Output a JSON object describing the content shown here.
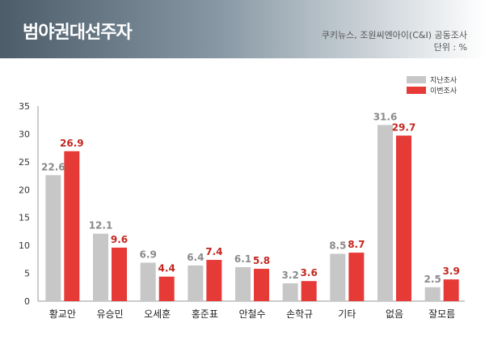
{
  "header": {
    "title": "범야권대선주자",
    "source": "쿠키뉴스, 조원씨엔아이(C&I) 공동조사",
    "unit": "단위 : %"
  },
  "colors": {
    "previous": "#c7c7c7",
    "current": "#e63a36",
    "previous_label": "#8a8a8a",
    "current_label": "#c4271f"
  },
  "chart_data": {
    "type": "bar",
    "categories": [
      "황교안",
      "유승민",
      "오세훈",
      "홍준표",
      "안철수",
      "손학규",
      "기타",
      "없음",
      "잘모름"
    ],
    "series": [
      {
        "name": "지난조사",
        "values": [
          22.6,
          12.1,
          6.9,
          6.4,
          6.1,
          3.2,
          8.5,
          31.6,
          2.5
        ]
      },
      {
        "name": "이번조사",
        "values": [
          26.9,
          9.6,
          4.4,
          7.4,
          5.8,
          3.6,
          8.7,
          29.7,
          3.9
        ]
      }
    ],
    "ylim": [
      0,
      35
    ],
    "yticks": [
      0,
      5,
      10,
      15,
      20,
      25,
      30,
      35
    ],
    "legend": "top-right",
    "grid": false
  }
}
